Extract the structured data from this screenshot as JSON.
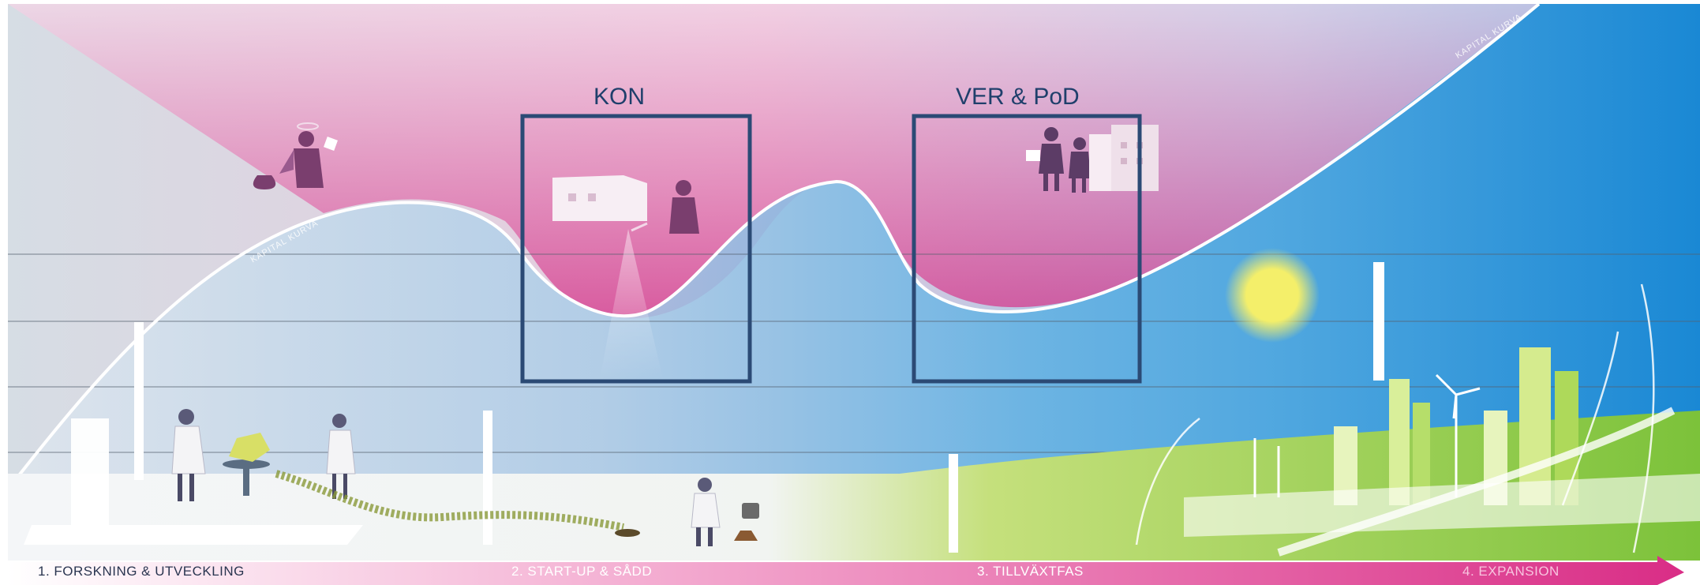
{
  "boxes": [
    {
      "label": "KON"
    },
    {
      "label": "VER & PoD"
    }
  ],
  "curve": {
    "label_left": "KAPITAL KURVA",
    "label_right": "KAPITAL KURVA"
  },
  "phases": [
    {
      "label": "1. FORSKNING & UTVECKLING"
    },
    {
      "label": "2. START-UP & SÅDD"
    },
    {
      "label": "3. TILLVÄXTFAS"
    },
    {
      "label": "4. EXPANSION"
    }
  ],
  "colors": {
    "box_stroke": "#2b4a75",
    "pink": "#d4358a",
    "blue": "#1f8ed6",
    "green": "#8cc63f",
    "sun": "#f2ee6a"
  },
  "icons": [
    "investor-angel-icon",
    "money-bag-icon",
    "scientist-icon",
    "factory-icon",
    "gardener-icon",
    "watering-can-icon",
    "business-people-icon",
    "sun-icon",
    "wind-turbine-icon",
    "city-skyline-icon"
  ]
}
